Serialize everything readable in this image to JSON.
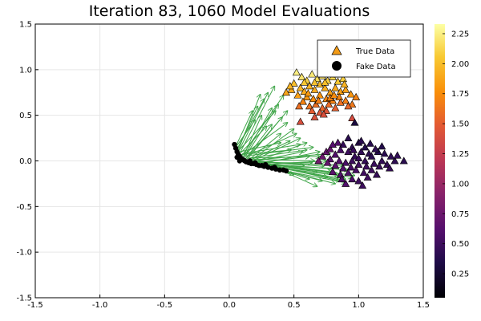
{
  "chart_data": {
    "type": "scatter",
    "title": "Iteration 83, 1060 Model Evaluations",
    "xlabel": "",
    "ylabel": "",
    "xlim": [
      -1.5,
      1.5
    ],
    "ylim": [
      -1.5,
      1.5
    ],
    "x_ticks": [
      "-1.5",
      "-1.0",
      "-0.5",
      "0.0",
      "0.5",
      "1.0",
      "1.5"
    ],
    "y_ticks": [
      "-1.5",
      "-1.0",
      "-0.5",
      "0.0",
      "0.5",
      "1.0",
      "1.5"
    ],
    "grid": true,
    "legend_position": "top-right",
    "colorbar": {
      "range": [
        0.05,
        2.33
      ],
      "ticks": [
        "0.25",
        "0.50",
        "0.75",
        "1.00",
        "1.25",
        "1.50",
        "1.75",
        "2.00",
        "2.25"
      ],
      "colormap": "inferno"
    },
    "series": [
      {
        "name": "True Data",
        "marker": "triangle",
        "points": [
          [
            0.52,
            0.97,
            2.25
          ],
          [
            0.56,
            0.92,
            2.2
          ],
          [
            0.6,
            0.88,
            2.1
          ],
          [
            0.64,
            0.95,
            2.22
          ],
          [
            0.68,
            0.9,
            2.15
          ],
          [
            0.72,
            0.93,
            2.18
          ],
          [
            0.76,
            0.88,
            2.1
          ],
          [
            0.8,
            0.92,
            2.12
          ],
          [
            0.84,
            0.87,
            2.05
          ],
          [
            0.88,
            0.9,
            2.08
          ],
          [
            0.5,
            0.85,
            2.0
          ],
          [
            0.55,
            0.8,
            1.95
          ],
          [
            0.58,
            0.76,
            1.9
          ],
          [
            0.62,
            0.82,
            1.95
          ],
          [
            0.66,
            0.78,
            1.9
          ],
          [
            0.7,
            0.84,
            1.98
          ],
          [
            0.74,
            0.8,
            1.92
          ],
          [
            0.78,
            0.75,
            1.85
          ],
          [
            0.82,
            0.8,
            1.9
          ],
          [
            0.86,
            0.76,
            1.85
          ],
          [
            0.9,
            0.78,
            1.85
          ],
          [
            0.94,
            0.73,
            1.8
          ],
          [
            0.48,
            0.78,
            1.9
          ],
          [
            0.44,
            0.75,
            1.88
          ],
          [
            0.53,
            0.72,
            1.85
          ],
          [
            0.6,
            0.7,
            1.8
          ],
          [
            0.65,
            0.68,
            1.75
          ],
          [
            0.7,
            0.72,
            1.78
          ],
          [
            0.75,
            0.68,
            1.72
          ],
          [
            0.8,
            0.66,
            1.7
          ],
          [
            0.85,
            0.7,
            1.72
          ],
          [
            0.9,
            0.66,
            1.68
          ],
          [
            0.95,
            0.62,
            1.65
          ],
          [
            0.98,
            0.7,
            1.7
          ],
          [
            0.57,
            0.65,
            1.7
          ],
          [
            0.62,
            0.6,
            1.62
          ],
          [
            0.67,
            0.62,
            1.6
          ],
          [
            0.72,
            0.58,
            1.55
          ],
          [
            0.77,
            0.62,
            1.58
          ],
          [
            0.82,
            0.58,
            1.52
          ],
          [
            0.64,
            0.55,
            1.5
          ],
          [
            0.7,
            0.53,
            1.45
          ],
          [
            0.75,
            0.55,
            1.45
          ],
          [
            0.54,
            0.6,
            1.6
          ],
          [
            0.92,
            0.6,
            1.55
          ],
          [
            0.55,
            0.43,
            1.4
          ],
          [
            0.66,
            0.48,
            1.42
          ],
          [
            0.95,
            0.47,
            1.38
          ],
          [
            0.73,
            0.51,
            1.4
          ],
          [
            0.86,
            0.64,
            1.6
          ],
          [
            0.78,
            0.69,
            1.7
          ],
          [
            0.69,
            0.66,
            1.68
          ],
          [
            0.61,
            0.74,
            1.82
          ],
          [
            0.81,
            0.72,
            1.75
          ],
          [
            0.89,
            0.84,
            1.95
          ],
          [
            0.74,
            0.86,
            2.0
          ],
          [
            0.66,
            0.86,
            2.02
          ],
          [
            0.58,
            0.86,
            2.05
          ],
          [
            0.83,
            0.95,
            2.2
          ],
          [
            0.47,
            0.82,
            1.95
          ],
          [
            0.97,
            0.42,
            0.3
          ],
          [
            0.92,
            0.25,
            0.4
          ],
          [
            0.88,
            0.18,
            0.45
          ],
          [
            0.95,
            0.15,
            0.42
          ],
          [
            1.0,
            0.2,
            0.38
          ],
          [
            1.05,
            0.15,
            0.35
          ],
          [
            1.08,
            0.08,
            0.4
          ],
          [
            1.02,
            0.1,
            0.42
          ],
          [
            0.97,
            0.05,
            0.45
          ],
          [
            0.92,
            0.1,
            0.5
          ],
          [
            0.86,
            0.12,
            0.55
          ],
          [
            0.82,
            0.07,
            0.6
          ],
          [
            0.78,
            0.02,
            0.65
          ],
          [
            0.85,
            0.0,
            0.6
          ],
          [
            0.9,
            -0.02,
            0.55
          ],
          [
            0.95,
            0.0,
            0.5
          ],
          [
            1.0,
            0.03,
            0.48
          ],
          [
            1.05,
            0.0,
            0.45
          ],
          [
            1.1,
            0.05,
            0.4
          ],
          [
            1.15,
            0.1,
            0.38
          ],
          [
            1.2,
            0.08,
            0.4
          ],
          [
            1.25,
            0.05,
            0.42
          ],
          [
            1.18,
            0.0,
            0.45
          ],
          [
            1.12,
            -0.03,
            0.48
          ],
          [
            1.06,
            -0.06,
            0.5
          ],
          [
            1.0,
            -0.04,
            0.52
          ],
          [
            0.94,
            -0.07,
            0.55
          ],
          [
            0.88,
            -0.08,
            0.6
          ],
          [
            0.82,
            -0.05,
            0.65
          ],
          [
            0.76,
            -0.02,
            0.7
          ],
          [
            0.8,
            -0.12,
            0.65
          ],
          [
            0.86,
            -0.15,
            0.6
          ],
          [
            0.92,
            -0.13,
            0.58
          ],
          [
            0.98,
            -0.1,
            0.55
          ],
          [
            1.04,
            -0.13,
            0.52
          ],
          [
            1.1,
            -0.1,
            0.5
          ],
          [
            1.16,
            -0.06,
            0.48
          ],
          [
            1.22,
            -0.04,
            0.45
          ],
          [
            1.28,
            0.0,
            0.42
          ],
          [
            1.35,
            0.0,
            0.4
          ],
          [
            0.95,
            -0.2,
            0.55
          ],
          [
            0.9,
            -0.25,
            0.6
          ],
          [
            1.0,
            -0.22,
            0.5
          ],
          [
            1.07,
            -0.18,
            0.52
          ],
          [
            0.72,
            0.05,
            0.75
          ],
          [
            0.75,
            0.1,
            0.72
          ],
          [
            0.78,
            0.13,
            0.7
          ],
          [
            0.84,
            0.2,
            0.6
          ],
          [
            1.02,
            0.22,
            0.4
          ],
          [
            1.13,
            0.13,
            0.42
          ],
          [
            0.69,
            0.0,
            0.78
          ],
          [
            1.3,
            0.06,
            0.44
          ],
          [
            1.24,
            -0.08,
            0.46
          ],
          [
            0.96,
            0.12,
            0.48
          ],
          [
            1.09,
            0.19,
            0.38
          ],
          [
            0.87,
            -0.2,
            0.58
          ],
          [
            1.14,
            -0.15,
            0.46
          ],
          [
            0.8,
            0.18,
            0.62
          ],
          [
            1.18,
            0.16,
            0.36
          ],
          [
            1.03,
            -0.27,
            0.5
          ]
        ]
      },
      {
        "name": "Fake Data",
        "marker": "circle",
        "points": [
          [
            0.04,
            0.18
          ],
          [
            0.05,
            0.14
          ],
          [
            0.06,
            0.1
          ],
          [
            0.07,
            0.07
          ],
          [
            0.08,
            0.05
          ],
          [
            0.09,
            0.03
          ],
          [
            0.1,
            0.02
          ],
          [
            0.11,
            0.01
          ],
          [
            0.12,
            0.0
          ],
          [
            0.13,
            -0.01
          ],
          [
            0.14,
            -0.01
          ],
          [
            0.15,
            -0.02
          ],
          [
            0.17,
            -0.03
          ],
          [
            0.19,
            -0.03
          ],
          [
            0.21,
            -0.04
          ],
          [
            0.23,
            -0.05
          ],
          [
            0.25,
            -0.05
          ],
          [
            0.27,
            -0.06
          ],
          [
            0.3,
            -0.07
          ],
          [
            0.33,
            -0.08
          ],
          [
            0.36,
            -0.09
          ],
          [
            0.39,
            -0.1
          ],
          [
            0.42,
            -0.1
          ],
          [
            0.44,
            -0.11
          ],
          [
            0.08,
            0.0
          ],
          [
            0.06,
            0.04
          ],
          [
            0.16,
            0.0
          ],
          [
            0.2,
            -0.02
          ],
          [
            0.28,
            -0.04
          ],
          [
            0.35,
            -0.07
          ]
        ]
      }
    ],
    "arrows": [
      [
        0.05,
        0.15,
        0.2,
        0.45
      ],
      [
        0.06,
        0.12,
        0.22,
        0.6
      ],
      [
        0.07,
        0.1,
        0.3,
        0.75
      ],
      [
        0.08,
        0.08,
        0.35,
        0.82
      ],
      [
        0.1,
        0.06,
        0.42,
        0.72
      ],
      [
        0.11,
        0.05,
        0.25,
        0.5
      ],
      [
        0.12,
        0.04,
        0.38,
        0.62
      ],
      [
        0.13,
        0.03,
        0.33,
        0.4
      ],
      [
        0.14,
        0.02,
        0.45,
        0.55
      ],
      [
        0.15,
        0.01,
        0.4,
        0.3
      ],
      [
        0.16,
        0.0,
        0.5,
        0.35
      ],
      [
        0.18,
        0.0,
        0.55,
        0.25
      ],
      [
        0.2,
        -0.01,
        0.6,
        0.2
      ],
      [
        0.22,
        -0.02,
        0.62,
        0.05
      ],
      [
        0.24,
        -0.03,
        0.7,
        0.1
      ],
      [
        0.26,
        -0.04,
        0.75,
        0.0
      ],
      [
        0.28,
        -0.05,
        0.8,
        -0.08
      ],
      [
        0.3,
        -0.05,
        0.85,
        -0.15
      ],
      [
        0.32,
        -0.06,
        0.9,
        -0.2
      ],
      [
        0.34,
        -0.07,
        0.95,
        -0.18
      ],
      [
        0.36,
        -0.08,
        0.72,
        -0.22
      ],
      [
        0.38,
        -0.09,
        0.82,
        -0.25
      ],
      [
        0.4,
        -0.1,
        0.9,
        -0.24
      ],
      [
        0.09,
        0.07,
        0.48,
        0.12
      ],
      [
        0.1,
        0.05,
        0.65,
        0.15
      ],
      [
        0.12,
        0.03,
        0.7,
        0.05
      ],
      [
        0.14,
        0.01,
        0.58,
        -0.05
      ],
      [
        0.17,
        0.0,
        0.68,
        -0.12
      ],
      [
        0.21,
        -0.02,
        0.5,
        -0.15
      ],
      [
        0.25,
        -0.03,
        0.62,
        -0.2
      ],
      [
        0.06,
        0.13,
        0.27,
        0.68
      ],
      [
        0.07,
        0.11,
        0.36,
        0.55
      ],
      [
        0.09,
        0.09,
        0.29,
        0.38
      ],
      [
        0.11,
        0.07,
        0.45,
        0.42
      ],
      [
        0.13,
        0.05,
        0.52,
        0.3
      ],
      [
        0.15,
        0.03,
        0.6,
        0.12
      ],
      [
        0.19,
        0.01,
        0.78,
        0.08
      ],
      [
        0.23,
        -0.01,
        0.88,
        -0.05
      ],
      [
        0.27,
        -0.03,
        0.92,
        -0.1
      ],
      [
        0.31,
        -0.04,
        0.97,
        -0.16
      ],
      [
        0.35,
        -0.06,
        0.76,
        -0.18
      ],
      [
        0.08,
        0.1,
        0.4,
        0.2
      ],
      [
        0.1,
        0.08,
        0.55,
        0.18
      ],
      [
        0.16,
        0.02,
        0.66,
        0.0
      ],
      [
        0.2,
        0.0,
        0.73,
        -0.06
      ],
      [
        0.29,
        -0.04,
        0.86,
        -0.22
      ],
      [
        0.33,
        -0.06,
        0.68,
        -0.28
      ],
      [
        0.05,
        0.16,
        0.18,
        0.55
      ],
      [
        0.07,
        0.12,
        0.24,
        0.73
      ],
      [
        0.12,
        0.06,
        0.33,
        0.58
      ],
      [
        0.14,
        0.04,
        0.41,
        0.48
      ],
      [
        0.18,
        0.02,
        0.47,
        0.22
      ],
      [
        0.22,
        0.0,
        0.57,
        0.1
      ],
      [
        0.26,
        -0.02,
        0.64,
        -0.02
      ],
      [
        0.3,
        -0.03,
        0.79,
        -0.12
      ],
      [
        0.37,
        -0.07,
        0.84,
        -0.2
      ]
    ]
  }
}
